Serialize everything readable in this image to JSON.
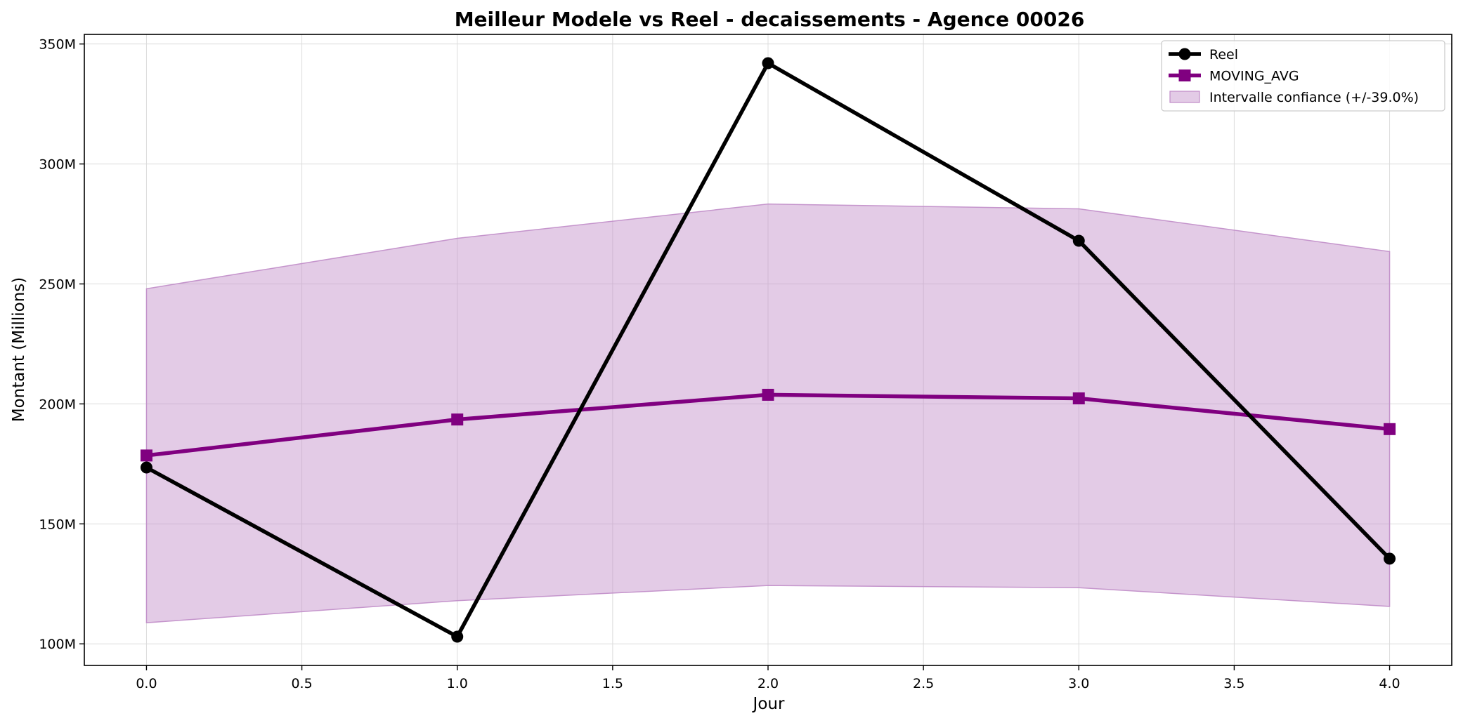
{
  "chart_data": {
    "type": "line",
    "title": "Meilleur Modele vs Reel - decaissements - Agence 00026",
    "xlabel": "Jour",
    "ylabel": "Montant (Millions)",
    "x": [
      0,
      1,
      2,
      3,
      4
    ],
    "xlim": [
      -0.2,
      4.2
    ],
    "ylim": [
      91,
      354
    ],
    "xticks": [
      0.0,
      0.5,
      1.0,
      1.5,
      2.0,
      2.5,
      3.0,
      3.5,
      4.0
    ],
    "xtick_labels": [
      "0.0",
      "0.5",
      "1.0",
      "1.5",
      "2.0",
      "2.5",
      "3.0",
      "3.5",
      "4.0"
    ],
    "yticks": [
      100,
      150,
      200,
      250,
      300,
      350
    ],
    "ytick_labels": [
      "100M",
      "150M",
      "200M",
      "250M",
      "300M",
      "350M"
    ],
    "grid": true,
    "legend_position": "top-right",
    "series": [
      {
        "name": "Reel",
        "values": [
          173.5,
          103.0,
          342.0,
          268.0,
          135.5
        ],
        "color": "#000000",
        "marker": "circle"
      },
      {
        "name": "MOVING_AVG",
        "values": [
          178.5,
          193.5,
          203.8,
          202.3,
          189.5
        ],
        "color": "#800080",
        "marker": "square"
      }
    ],
    "band": {
      "name": "Intervalle confiance (+/-39.0%)",
      "upper": [
        248.0,
        269.0,
        283.3,
        281.3,
        263.5
      ],
      "lower": [
        108.8,
        118.0,
        124.3,
        123.4,
        115.6
      ],
      "color": "#c08cc8"
    }
  }
}
